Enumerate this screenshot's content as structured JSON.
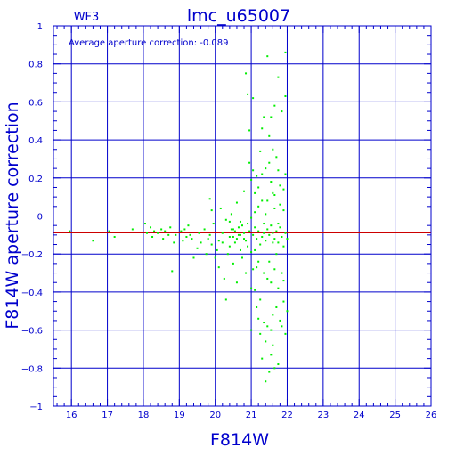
{
  "chart_data": {
    "type": "scatter",
    "chip_label": "WF3",
    "title": "lmc_u65007",
    "annotation": "Average aperture correction: -0.089",
    "xlabel": "F814W",
    "ylabel": "F814W aperture correction",
    "xlim": [
      15.5,
      26
    ],
    "ylim": [
      -1,
      1
    ],
    "x_ticks": [
      16,
      17,
      18,
      19,
      20,
      21,
      22,
      23,
      24,
      25,
      26
    ],
    "y_ticks": [
      -1,
      -0.8,
      -0.6,
      -0.4,
      -0.2,
      0,
      0.2,
      0.4,
      0.6,
      0.8,
      1
    ],
    "x_tick_labels": [
      "16",
      "17",
      "18",
      "19",
      "20",
      "21",
      "22",
      "23",
      "24",
      "25",
      "26"
    ],
    "y_tick_labels": [
      "−1",
      "−0.8",
      "−0.6",
      "−0.4",
      "−0.2",
      "0",
      "0.2",
      "0.4",
      "0.6",
      "0.8",
      "1"
    ],
    "grid": true,
    "reference_line": {
      "y": -0.089,
      "color": "#cc0000"
    },
    "colors": {
      "axes": "#0000cc",
      "points": "#00ee00",
      "reference": "#cc0000"
    },
    "series": [
      {
        "points": [
          [
            15.95,
            -0.08
          ],
          [
            16.6,
            -0.13
          ],
          [
            17.05,
            -0.08
          ],
          [
            17.2,
            -0.11
          ],
          [
            17.7,
            -0.07
          ],
          [
            18.05,
            -0.04
          ],
          [
            18.1,
            -0.09
          ],
          [
            18.2,
            -0.06
          ],
          [
            18.25,
            -0.11
          ],
          [
            18.3,
            -0.08
          ],
          [
            18.4,
            -0.09
          ],
          [
            18.5,
            -0.07
          ],
          [
            18.55,
            -0.12
          ],
          [
            18.6,
            -0.08
          ],
          [
            18.7,
            -0.1
          ],
          [
            18.75,
            -0.06
          ],
          [
            18.8,
            -0.29
          ],
          [
            18.85,
            -0.14
          ],
          [
            18.9,
            -0.1
          ],
          [
            19.05,
            -0.08
          ],
          [
            19.1,
            -0.13
          ],
          [
            19.15,
            -0.07
          ],
          [
            19.2,
            -0.11
          ],
          [
            19.25,
            -0.05
          ],
          [
            19.3,
            -0.1
          ],
          [
            19.35,
            -0.12
          ],
          [
            19.4,
            -0.22
          ],
          [
            19.5,
            -0.17
          ],
          [
            19.55,
            -0.09
          ],
          [
            19.6,
            -0.14
          ],
          [
            19.7,
            -0.07
          ],
          [
            19.75,
            -0.2
          ],
          [
            19.8,
            -0.12
          ],
          [
            19.85,
            -0.1
          ],
          [
            19.9,
            -0.15
          ],
          [
            19.85,
            0.09
          ],
          [
            19.9,
            0.03
          ],
          [
            19.95,
            -0.04
          ],
          [
            20.0,
            -0.22
          ],
          [
            20.05,
            -0.18
          ],
          [
            20.1,
            -0.13
          ],
          [
            20.1,
            -0.27
          ],
          [
            20.15,
            0.04
          ],
          [
            20.2,
            -0.09
          ],
          [
            20.2,
            -0.14
          ],
          [
            20.25,
            -0.33
          ],
          [
            20.3,
            -0.44
          ],
          [
            20.3,
            -0.02
          ],
          [
            20.35,
            -0.2
          ],
          [
            20.4,
            -0.11
          ],
          [
            20.4,
            -0.16
          ],
          [
            20.45,
            0.01
          ],
          [
            20.5,
            -0.25
          ],
          [
            20.5,
            -0.07
          ],
          [
            20.55,
            -0.14
          ],
          [
            20.6,
            -0.35
          ],
          [
            20.6,
            0.07
          ],
          [
            20.65,
            -0.1
          ],
          [
            20.7,
            -0.18
          ],
          [
            20.7,
            -0.03
          ],
          [
            20.75,
            -0.22
          ],
          [
            20.8,
            -0.12
          ],
          [
            20.8,
            0.13
          ],
          [
            20.85,
            -0.3
          ],
          [
            20.9,
            -0.04
          ],
          [
            20.9,
            -0.16
          ],
          [
            20.95,
            -0.08
          ],
          [
            20.55,
            -0.08
          ],
          [
            20.6,
            -0.12
          ],
          [
            20.65,
            -0.06
          ],
          [
            20.7,
            -0.1
          ],
          [
            20.75,
            -0.05
          ],
          [
            20.8,
            -0.09
          ],
          [
            20.85,
            -0.13
          ],
          [
            20.5,
            -0.11
          ],
          [
            20.45,
            -0.07
          ],
          [
            20.4,
            -0.03
          ],
          [
            20.85,
            0.75
          ],
          [
            20.9,
            0.64
          ],
          [
            20.95,
            0.45
          ],
          [
            20.95,
            0.28
          ],
          [
            21.0,
            0.19
          ],
          [
            21.0,
            -0.01
          ],
          [
            21.0,
            -0.19
          ],
          [
            21.0,
            -0.38
          ],
          [
            21.0,
            -0.6
          ],
          [
            21.05,
            0.62
          ],
          [
            21.1,
            0.12
          ],
          [
            21.15,
            -0.27
          ],
          [
            21.2,
            0.05
          ],
          [
            21.25,
            -0.44
          ],
          [
            21.3,
            0.22
          ],
          [
            21.35,
            -0.09
          ],
          [
            21.4,
            -0.66
          ],
          [
            21.45,
            0.08
          ],
          [
            21.5,
            -0.24
          ],
          [
            21.5,
            0.28
          ],
          [
            21.55,
            -0.35
          ],
          [
            21.6,
            -0.14
          ],
          [
            21.6,
            -0.52
          ],
          [
            21.65,
            0.11
          ],
          [
            21.7,
            -0.2
          ],
          [
            21.75,
            -0.04
          ],
          [
            21.75,
            -0.78
          ],
          [
            21.8,
            0.16
          ],
          [
            21.85,
            -0.3
          ],
          [
            21.9,
            -0.45
          ],
          [
            21.9,
            0.03
          ],
          [
            21.95,
            -0.62
          ],
          [
            21.45,
            0.84
          ],
          [
            21.55,
            0.52
          ],
          [
            21.5,
            0.42
          ],
          [
            21.6,
            0.35
          ],
          [
            21.7,
            0.31
          ],
          [
            21.85,
            0.55
          ],
          [
            21.95,
            0.63
          ],
          [
            21.95,
            0.86
          ],
          [
            21.75,
            0.73
          ],
          [
            21.65,
            0.58
          ],
          [
            21.35,
            0.52
          ],
          [
            21.25,
            0.34
          ],
          [
            21.3,
            0.46
          ],
          [
            21.5,
            -0.82
          ],
          [
            21.55,
            -0.73
          ],
          [
            21.45,
            -0.58
          ],
          [
            21.6,
            -0.68
          ],
          [
            21.65,
            -0.8
          ],
          [
            21.4,
            -0.87
          ],
          [
            21.3,
            -0.75
          ],
          [
            21.2,
            -0.54
          ],
          [
            21.1,
            -0.39
          ],
          [
            21.15,
            -0.48
          ],
          [
            21.25,
            -0.62
          ],
          [
            21.35,
            -0.56
          ],
          [
            21.55,
            -0.6
          ],
          [
            21.7,
            -0.48
          ],
          [
            21.8,
            -0.55
          ],
          [
            21.85,
            -0.58
          ],
          [
            21.9,
            -0.34
          ],
          [
            21.75,
            -0.38
          ],
          [
            21.65,
            -0.28
          ],
          [
            21.45,
            -0.33
          ],
          [
            21.35,
            -0.3
          ],
          [
            21.2,
            -0.24
          ],
          [
            21.1,
            -0.18
          ],
          [
            21.05,
            -0.28
          ],
          [
            21.05,
            -0.1
          ],
          [
            21.1,
            -0.06
          ],
          [
            21.15,
            -0.12
          ],
          [
            21.2,
            -0.08
          ],
          [
            21.25,
            -0.15
          ],
          [
            21.3,
            -0.11
          ],
          [
            21.35,
            -0.04
          ],
          [
            21.4,
            -0.13
          ],
          [
            21.45,
            -0.07
          ],
          [
            21.5,
            -0.1
          ],
          [
            21.55,
            -0.05
          ],
          [
            21.6,
            -0.09
          ],
          [
            21.65,
            -0.12
          ],
          [
            21.7,
            -0.08
          ],
          [
            21.75,
            -0.14
          ],
          [
            21.8,
            -0.06
          ],
          [
            21.85,
            -0.11
          ],
          [
            21.9,
            -0.16
          ],
          [
            21.95,
            -0.09
          ],
          [
            22.0,
            -0.5
          ],
          [
            22.0,
            -0.12
          ],
          [
            21.1,
            0.02
          ],
          [
            21.2,
            0.15
          ],
          [
            21.3,
            0.08
          ],
          [
            21.4,
            0.01
          ],
          [
            21.55,
            0.18
          ],
          [
            21.65,
            0.04
          ],
          [
            21.75,
            0.24
          ],
          [
            21.8,
            0.06
          ],
          [
            21.9,
            0.14
          ],
          [
            21.95,
            0.22
          ],
          [
            21.05,
            0.24
          ],
          [
            21.15,
            0.21
          ],
          [
            21.4,
            0.25
          ],
          [
            21.6,
            0.12
          ]
        ]
      }
    ]
  }
}
